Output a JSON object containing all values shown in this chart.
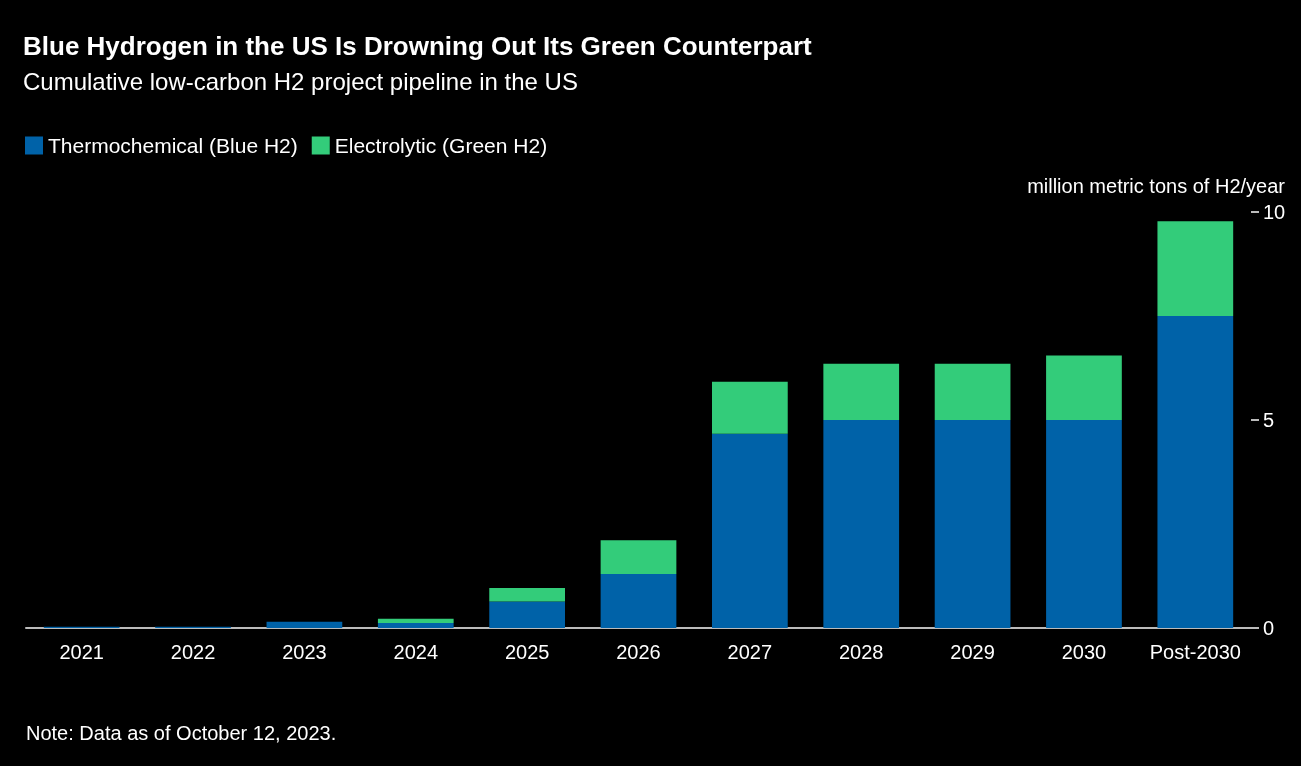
{
  "chart_data": {
    "type": "bar",
    "title": "Blue Hydrogen in the US Is Drowning Out Its Green Counterpart",
    "subtitle": "Cumulative low-carbon H2 project pipeline in the US",
    "categories": [
      "2021",
      "2022",
      "2023",
      "2024",
      "2025",
      "2026",
      "2027",
      "2028",
      "2029",
      "2030",
      "Post-2030"
    ],
    "series": [
      {
        "name": "Thermochemical (Blue H2)",
        "color": "#0062a8",
        "values": [
          0.03,
          0.03,
          0.15,
          0.12,
          0.64,
          1.3,
          4.67,
          5.0,
          5.0,
          5.0,
          7.5
        ]
      },
      {
        "name": "Electrolytic (Green H2)",
        "color": "#33cc7a",
        "values": [
          0,
          0,
          0,
          0.1,
          0.32,
          0.81,
          1.25,
          1.35,
          1.35,
          1.55,
          2.28
        ]
      }
    ],
    "stacked": true,
    "ylim": [
      0,
      10
    ],
    "yticks": [
      0,
      5,
      10
    ],
    "ylabel": "million metric tons of H2/year",
    "grid": false,
    "legend": "top left",
    "annotations": [
      "Note: Data as of October 12, 2023."
    ]
  }
}
